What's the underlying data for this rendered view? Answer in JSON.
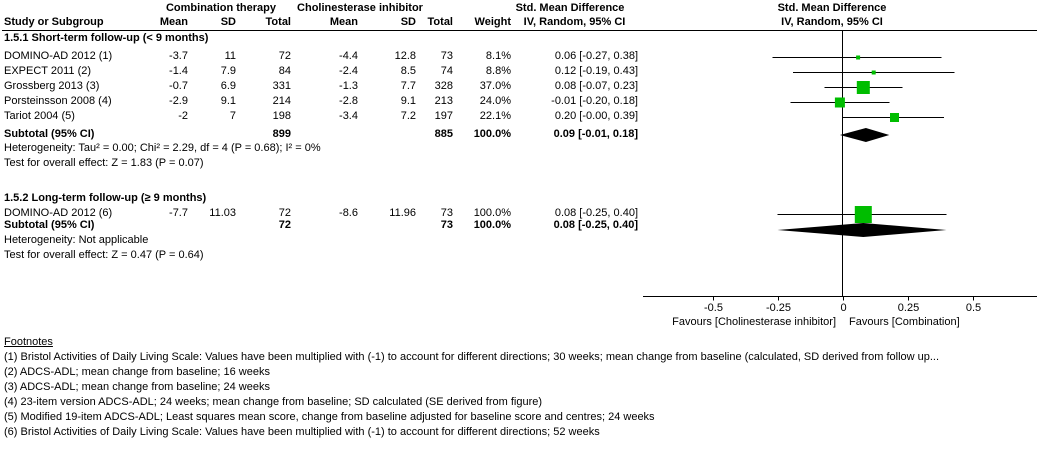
{
  "header": {
    "study_col": "Study or Subgroup",
    "group1": "Combination therapy",
    "group2": "Cholinesterase inhibitor",
    "mean": "Mean",
    "sd": "SD",
    "total": "Total",
    "weight": "Weight",
    "effect_col_title": "Std. Mean Difference",
    "effect_col_sub": "IV, Random, 95% CI",
    "plot_title": "Std. Mean Difference",
    "plot_sub": "IV, Random, 95% CI"
  },
  "colors": {
    "marker_green": "#00BD00",
    "diamond_black": "#000000"
  },
  "chart_data": {
    "type": "forest",
    "effect_measure": "Std. Mean Difference",
    "model": "IV, Random, 95% CI",
    "x_ticks": [
      -0.5,
      -0.25,
      0,
      0.25,
      0.5
    ],
    "x_tick_labels": [
      "-0.5",
      "-0.25",
      "0",
      "0.25",
      "0.5"
    ],
    "favours_left": "Favours [Cholinesterase inhibitor]",
    "favours_right": "Favours [Combination]",
    "subgroups": [
      {
        "title": "1.5.1 Short-term follow-up (< 9 months)",
        "studies": [
          {
            "name": "DOMINO-AD 2012 (1)",
            "mean1": "-3.7",
            "sd1": "11",
            "total1": "72",
            "mean2": "-4.4",
            "sd2": "12.8",
            "total2": "73",
            "weight": "8.1%",
            "ci_text": "0.06 [-0.27, 0.38]",
            "smd": 0.06,
            "ci_low": -0.27,
            "ci_high": 0.38
          },
          {
            "name": "EXPECT 2011 (2)",
            "mean1": "-1.4",
            "sd1": "7.9",
            "total1": "84",
            "mean2": "-2.4",
            "sd2": "8.5",
            "total2": "74",
            "weight": "8.8%",
            "ci_text": "0.12 [-0.19, 0.43]",
            "smd": 0.12,
            "ci_low": -0.19,
            "ci_high": 0.43
          },
          {
            "name": "Grossberg 2013 (3)",
            "mean1": "-0.7",
            "sd1": "6.9",
            "total1": "331",
            "mean2": "-1.3",
            "sd2": "7.7",
            "total2": "328",
            "weight": "37.0%",
            "ci_text": "0.08 [-0.07, 0.23]",
            "smd": 0.08,
            "ci_low": -0.07,
            "ci_high": 0.23
          },
          {
            "name": "Porsteinsson 2008 (4)",
            "mean1": "-2.9",
            "sd1": "9.1",
            "total1": "214",
            "mean2": "-2.8",
            "sd2": "9.1",
            "total2": "213",
            "weight": "24.0%",
            "ci_text": "-0.01 [-0.20, 0.18]",
            "smd": -0.01,
            "ci_low": -0.2,
            "ci_high": 0.18
          },
          {
            "name": "Tariot 2004 (5)",
            "mean1": "-2",
            "sd1": "7",
            "total1": "198",
            "mean2": "-3.4",
            "sd2": "7.2",
            "total2": "197",
            "weight": "22.1%",
            "ci_text": "0.20 [-0.00, 0.39]",
            "smd": 0.2,
            "ci_low": 0.0,
            "ci_high": 0.39
          }
        ],
        "subtotal": {
          "label": "Subtotal (95% CI)",
          "total1": "899",
          "total2": "885",
          "weight": "100.0%",
          "ci_text": "0.09 [-0.01, 0.18]",
          "smd": 0.09,
          "ci_low": -0.01,
          "ci_high": 0.18
        },
        "heterogeneity": "Heterogeneity: Tau² = 0.00; Chi² = 2.29, df = 4 (P = 0.68); I² = 0%",
        "overall_effect": "Test for overall effect: Z = 1.83 (P = 0.07)"
      },
      {
        "title": "1.5.2 Long-term follow-up (≥ 9 months)",
        "studies": [
          {
            "name": "DOMINO-AD 2012 (6)",
            "mean1": "-7.7",
            "sd1": "11.03",
            "total1": "72",
            "mean2": "-8.6",
            "sd2": "11.96",
            "total2": "73",
            "weight": "100.0%",
            "ci_text": "0.08 [-0.25, 0.40]",
            "smd": 0.08,
            "ci_low": -0.25,
            "ci_high": 0.4
          }
        ],
        "subtotal": {
          "label": "Subtotal (95% CI)",
          "total1": "72",
          "total2": "73",
          "weight": "100.0%",
          "ci_text": "0.08 [-0.25, 0.40]",
          "smd": 0.08,
          "ci_low": -0.25,
          "ci_high": 0.4
        },
        "heterogeneity": "Heterogeneity: Not applicable",
        "overall_effect": "Test for overall effect: Z = 0.47 (P = 0.64)"
      }
    ]
  },
  "footnotes": {
    "heading": "Footnotes",
    "items": [
      "(1) Bristol Activities of Daily Living Scale: Values have been multiplied with (-1) to account for different directions; 30 weeks; mean change from baseline (calculated, SD derived from follow up...",
      "(2) ADCS-ADL; mean change from baseline; 16 weeks",
      "(3) ADCS-ADL; mean change from baseline; 24 weeks",
      "(4) 23-item version ADCS-ADL; 24 weeks; mean change from baseline; SD calculated (SE derived from figure)",
      "(5) Modified 19-item ADCS-ADL; Least squares mean score, change from baseline adjusted for baseline score and centres; 24 weeks",
      "(6) Bristol Activities of Daily Living Scale: Values have been multiplied with (-1) to account for different directions; 52 weeks"
    ]
  }
}
